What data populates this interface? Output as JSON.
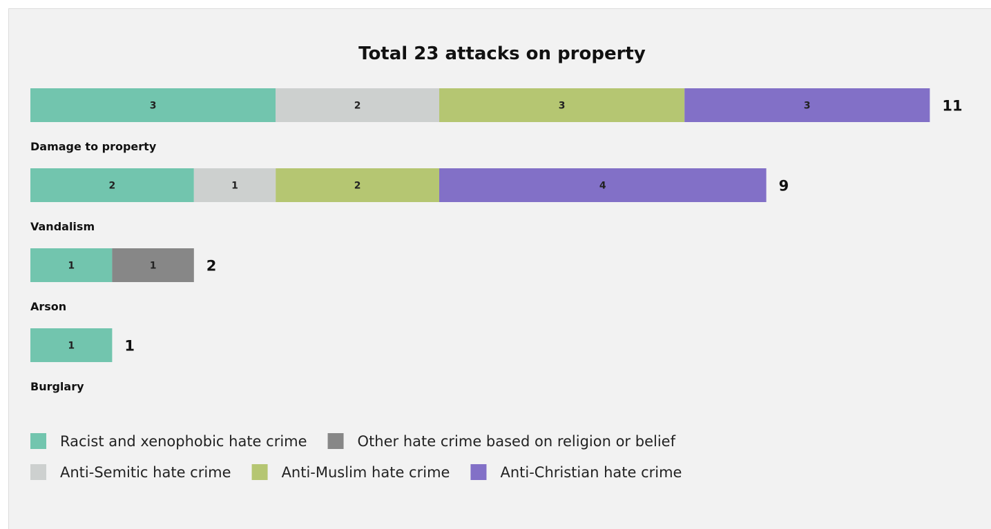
{
  "chart_data": {
    "type": "bar",
    "orientation": "horizontal",
    "stacked": true,
    "title": "Total 23 attacks on property",
    "categories": [
      "Damage to property",
      "Vandalism",
      "Arson",
      "Burglary"
    ],
    "totals": [
      11,
      9,
      2,
      1
    ],
    "segments": [
      [
        {
          "series": "Racist and xenophobic hate crime",
          "value": 3
        },
        {
          "series": "Anti-Semitic hate crime",
          "value": 2
        },
        {
          "series": "Anti-Muslim hate crime",
          "value": 3
        },
        {
          "series": "Anti-Christian hate crime",
          "value": 3
        }
      ],
      [
        {
          "series": "Racist and xenophobic hate crime",
          "value": 2
        },
        {
          "series": "Anti-Semitic hate crime",
          "value": 1
        },
        {
          "series": "Anti-Muslim hate crime",
          "value": 2
        },
        {
          "series": "Anti-Christian hate crime",
          "value": 4
        }
      ],
      [
        {
          "series": "Racist and xenophobic hate crime",
          "value": 1
        },
        {
          "series": "Other hate crime based on religion or belief",
          "value": 1
        }
      ],
      [
        {
          "series": "Racist and xenophobic hate crime",
          "value": 1
        }
      ]
    ],
    "series": [
      {
        "name": "Racist and xenophobic hate crime",
        "color": "#72c5ae"
      },
      {
        "name": "Other hate crime based on religion or belief",
        "color": "#878787"
      },
      {
        "name": "Anti-Semitic hate crime",
        "color": "#cdd0cf"
      },
      {
        "name": "Anti-Muslim hate crime",
        "color": "#b5c672"
      },
      {
        "name": "Anti-Christian hate crime",
        "color": "#8270c7"
      }
    ],
    "legend_position": "bottom-left",
    "grid": false
  }
}
